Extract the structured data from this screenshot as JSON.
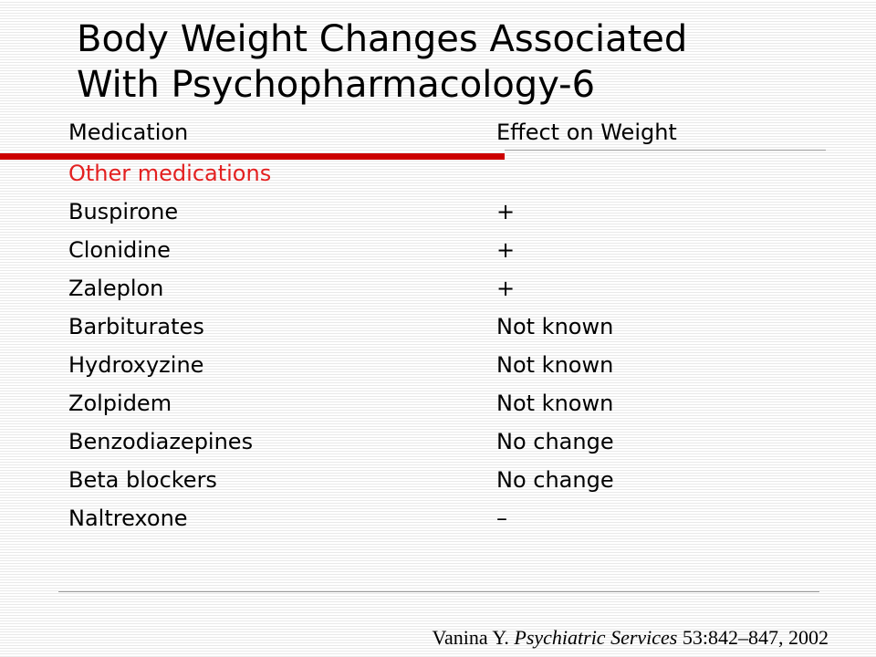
{
  "slide": {
    "title_line1": "Body Weight Changes Associated",
    "title_line2": "With Psychopharmacology-6"
  },
  "table": {
    "headers": {
      "medication": "Medication",
      "effect": "Effect on Weight"
    },
    "section_label": "Other medications",
    "rows": [
      {
        "medication": "Buspirone",
        "effect": "+"
      },
      {
        "medication": "Clonidine",
        "effect": "+"
      },
      {
        "medication": "Zaleplon",
        "effect": "+"
      },
      {
        "medication": "Barbiturates",
        "effect": "Not known"
      },
      {
        "medication": "Hydroxyzine",
        "effect": "Not known"
      },
      {
        "medication": "Zolpidem",
        "effect": "Not known"
      },
      {
        "medication": "Benzodiazepines",
        "effect": "No change"
      },
      {
        "medication": "Beta blockers",
        "effect": "No change"
      },
      {
        "medication": "Naltrexone",
        "effect": "–"
      }
    ]
  },
  "citation": {
    "author": "Vanina Y.",
    "journal": "Psychiatric Services",
    "details": "53:842–847, 2002"
  },
  "colors": {
    "accent_red": "#cc0000",
    "section_text_red": "#e32020",
    "rule_gray": "#9a9a9a"
  }
}
